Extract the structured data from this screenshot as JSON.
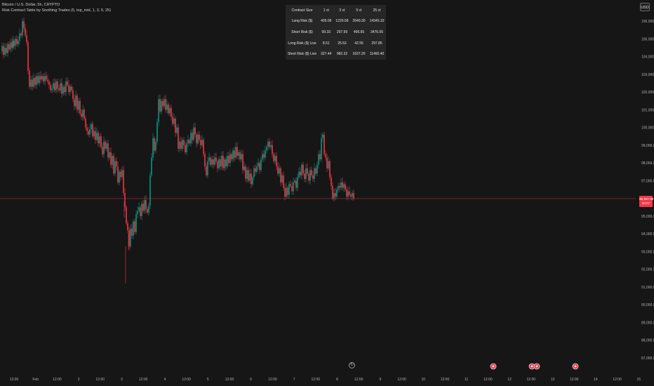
{
  "legend": {
    "line1": "Bitcoin / U.S. Dollar, 5h, CRYPTO",
    "line2": "Risk Contract Table by Soothing Trades (5, top_mid, 1, 3, 5, 25)"
  },
  "currency_button": "USD",
  "risk_table": {
    "headers": [
      "Contract Size",
      "1 ct",
      "3 ct",
      "5 ct",
      "25 ct"
    ],
    "rows": [
      [
        "Long Risk ($)",
        "409.06",
        "1229.58",
        "2049.30",
        "14345.10"
      ],
      [
        "Short Risk ($)",
        "99.33",
        "297.99",
        "496.65",
        "3476.55"
      ],
      [
        "Long Risk ($) Live",
        "8.51",
        "25.53",
        "42.55",
        "297.85"
      ],
      [
        "Short Risk ($) Live",
        "327.44",
        "982.32",
        "1637.20",
        "11460.40"
      ]
    ]
  },
  "price_badge": {
    "price": "95,987.89",
    "countdown": "20:07"
  },
  "colors": {
    "up": "#089981",
    "down": "#f23645",
    "background": "#161616",
    "price_line": "#f23645",
    "text": "#b2b2b2"
  },
  "chart_data": {
    "type": "candlestick",
    "symbol": "Bitcoin / U.S. Dollar",
    "interval": "5h",
    "current_price": 95987.89,
    "ylim": [
      86800,
      106400
    ],
    "y_ticks": [
      "106,000.00",
      "105,000.00",
      "104,000.00",
      "103,000.00",
      "102,000.00",
      "101,000.00",
      "100,000.00",
      "99,000.00",
      "98,000.00",
      "97,000.00",
      "95,000.00",
      "94,000.00",
      "93,000.00",
      "92,000.00",
      "91,000.00",
      "90,000.00",
      "89,000.00",
      "88,000.00",
      "87,000.00"
    ],
    "x_ticks": [
      "12:00",
      "Feb",
      "12:00",
      "2",
      "12:00",
      "3",
      "12:00",
      "4",
      "12:00",
      "5",
      "12:00",
      "6",
      "12:00",
      "7",
      "12:00",
      "8",
      "12:00",
      "9",
      "12:00",
      "10",
      "12:00",
      "11",
      "12:00",
      "12",
      "12:00",
      "13",
      "12:00",
      "14",
      "12:00",
      "15"
    ],
    "candle_path": [
      [
        0,
        104300
      ],
      [
        2,
        104600
      ],
      [
        4,
        104100
      ],
      [
        6,
        104500
      ],
      [
        8,
        104200
      ],
      [
        10,
        104700
      ],
      [
        12,
        104400
      ],
      [
        14,
        104800
      ],
      [
        16,
        104500
      ],
      [
        17,
        104900
      ],
      [
        19,
        104600
      ],
      [
        21,
        105000
      ],
      [
        23,
        104700
      ],
      [
        25,
        104900
      ],
      [
        27,
        105300
      ],
      [
        29,
        105200
      ],
      [
        31,
        106000
      ],
      [
        33,
        105600
      ],
      [
        35,
        105200
      ],
      [
        37,
        104800
      ],
      [
        39,
        103200
      ],
      [
        41,
        102300
      ],
      [
        43,
        102700
      ],
      [
        45,
        102300
      ],
      [
        47,
        102800
      ],
      [
        49,
        102400
      ],
      [
        51,
        102900
      ],
      [
        53,
        102500
      ],
      [
        55,
        102900
      ],
      [
        57,
        102700
      ],
      [
        59,
        102900
      ],
      [
        61,
        102600
      ],
      [
        63,
        102900
      ],
      [
        65,
        102700
      ],
      [
        67,
        102600
      ],
      [
        69,
        102400
      ],
      [
        71,
        102100
      ],
      [
        73,
        102200
      ],
      [
        75,
        102500
      ],
      [
        77,
        102100
      ],
      [
        79,
        102600
      ],
      [
        81,
        102200
      ],
      [
        83,
        102100
      ],
      [
        85,
        102500
      ],
      [
        87,
        101900
      ],
      [
        89,
        102300
      ],
      [
        91,
        102000
      ],
      [
        93,
        102600
      ],
      [
        95,
        102400
      ],
      [
        97,
        102000
      ],
      [
        99,
        102300
      ],
      [
        101,
        102100
      ],
      [
        103,
        101600
      ],
      [
        105,
        101200
      ],
      [
        107,
        101800
      ],
      [
        109,
        101000
      ],
      [
        111,
        101500
      ],
      [
        113,
        100800
      ],
      [
        115,
        100600
      ],
      [
        117,
        101000
      ],
      [
        119,
        100500
      ],
      [
        121,
        100000
      ],
      [
        123,
        99800
      ],
      [
        125,
        99600
      ],
      [
        127,
        99900
      ],
      [
        129,
        100200
      ],
      [
        131,
        99500
      ],
      [
        133,
        99800
      ],
      [
        135,
        99300
      ],
      [
        137,
        99700
      ],
      [
        139,
        99100
      ],
      [
        141,
        99500
      ],
      [
        143,
        98900
      ],
      [
        145,
        98500
      ],
      [
        147,
        99200
      ],
      [
        149,
        98800
      ],
      [
        151,
        99100
      ],
      [
        153,
        98300
      ],
      [
        155,
        98600
      ],
      [
        157,
        97900
      ],
      [
        159,
        98400
      ],
      [
        161,
        97400
      ],
      [
        163,
        98100
      ],
      [
        165,
        97800
      ],
      [
        167,
        96900
      ],
      [
        169,
        97500
      ],
      [
        171,
        97200
      ],
      [
        173,
        97600
      ],
      [
        175,
        96300
      ],
      [
        177,
        95500
      ],
      [
        179,
        94600
      ],
      [
        181,
        94200
      ],
      [
        183,
        93300
      ],
      [
        185,
        94300
      ],
      [
        187,
        93900
      ],
      [
        189,
        94700
      ],
      [
        191,
        94100
      ],
      [
        193,
        95100
      ],
      [
        195,
        95300
      ],
      [
        197,
        95500
      ],
      [
        199,
        95000
      ],
      [
        201,
        95700
      ],
      [
        203,
        95300
      ],
      [
        205,
        95900
      ],
      [
        207,
        95400
      ],
      [
        209,
        95200
      ],
      [
        211,
        95600
      ],
      [
        213,
        97300
      ],
      [
        215,
        98300
      ],
      [
        217,
        99400
      ],
      [
        219,
        98700
      ],
      [
        221,
        99200
      ],
      [
        223,
        100300
      ],
      [
        225,
        101600
      ],
      [
        227,
        100900
      ],
      [
        229,
        101500
      ],
      [
        231,
        101200
      ],
      [
        233,
        101600
      ],
      [
        235,
        101000
      ],
      [
        237,
        101300
      ],
      [
        239,
        100800
      ],
      [
        241,
        101100
      ],
      [
        243,
        100600
      ],
      [
        245,
        100200
      ],
      [
        247,
        100500
      ],
      [
        249,
        99700
      ],
      [
        251,
        100000
      ],
      [
        253,
        98800
      ],
      [
        255,
        99200
      ],
      [
        257,
        98800
      ],
      [
        259,
        99300
      ],
      [
        261,
        99000
      ],
      [
        263,
        98600
      ],
      [
        265,
        99100
      ],
      [
        267,
        99300
      ],
      [
        269,
        99100
      ],
      [
        271,
        99700
      ],
      [
        273,
        99300
      ],
      [
        275,
        100000
      ],
      [
        277,
        99600
      ],
      [
        279,
        99100
      ],
      [
        281,
        99600
      ],
      [
        283,
        99300
      ],
      [
        285,
        99000
      ],
      [
        287,
        99300
      ],
      [
        289,
        98500
      ],
      [
        291,
        97800
      ],
      [
        293,
        97300
      ],
      [
        295,
        98100
      ],
      [
        297,
        98300
      ],
      [
        299,
        97900
      ],
      [
        301,
        98200
      ],
      [
        303,
        97900
      ],
      [
        305,
        98300
      ],
      [
        307,
        98100
      ],
      [
        309,
        97700
      ],
      [
        311,
        98200
      ],
      [
        313,
        97800
      ],
      [
        315,
        98400
      ],
      [
        317,
        97700
      ],
      [
        319,
        98200
      ],
      [
        321,
        97800
      ],
      [
        323,
        98400
      ],
      [
        325,
        98000
      ],
      [
        327,
        98500
      ],
      [
        329,
        98200
      ],
      [
        331,
        98700
      ],
      [
        333,
        98300
      ],
      [
        335,
        98900
      ],
      [
        337,
        98400
      ],
      [
        339,
        98600
      ],
      [
        341,
        98200
      ],
      [
        343,
        98500
      ],
      [
        345,
        97600
      ],
      [
        347,
        97800
      ],
      [
        349,
        97100
      ],
      [
        351,
        97600
      ],
      [
        353,
        97000
      ],
      [
        355,
        97400
      ],
      [
        357,
        96800
      ],
      [
        359,
        97200
      ],
      [
        361,
        97700
      ],
      [
        363,
        97500
      ],
      [
        365,
        97800
      ],
      [
        367,
        98000
      ],
      [
        369,
        97600
      ],
      [
        371,
        98200
      ],
      [
        373,
        98500
      ],
      [
        375,
        98300
      ],
      [
        377,
        98700
      ],
      [
        379,
        98900
      ],
      [
        381,
        99200
      ],
      [
        383,
        98900
      ],
      [
        385,
        99000
      ],
      [
        387,
        98500
      ],
      [
        389,
        98100
      ],
      [
        391,
        98400
      ],
      [
        393,
        97800
      ],
      [
        395,
        97400
      ],
      [
        397,
        97700
      ],
      [
        399,
        96900
      ],
      [
        401,
        97300
      ],
      [
        403,
        96600
      ],
      [
        405,
        96100
      ],
      [
        407,
        96600
      ],
      [
        409,
        96200
      ],
      [
        411,
        96800
      ],
      [
        413,
        96700
      ],
      [
        415,
        96400
      ],
      [
        417,
        96900
      ],
      [
        419,
        97000
      ],
      [
        421,
        96600
      ],
      [
        423,
        97200
      ],
      [
        425,
        97500
      ],
      [
        427,
        97300
      ],
      [
        429,
        97900
      ],
      [
        431,
        97400
      ],
      [
        433,
        97100
      ],
      [
        435,
        97700
      ],
      [
        437,
        97400
      ],
      [
        439,
        97000
      ],
      [
        441,
        97600
      ],
      [
        443,
        97300
      ],
      [
        445,
        97100
      ],
      [
        447,
        97700
      ],
      [
        449,
        97400
      ],
      [
        451,
        97900
      ],
      [
        453,
        98500
      ],
      [
        455,
        98200
      ],
      [
        457,
        99400
      ],
      [
        459,
        99600
      ],
      [
        461,
        98500
      ],
      [
        463,
        98300
      ],
      [
        465,
        97700
      ],
      [
        467,
        98100
      ],
      [
        469,
        97200
      ],
      [
        471,
        96700
      ],
      [
        473,
        96000
      ],
      [
        475,
        96300
      ],
      [
        477,
        96100
      ],
      [
        479,
        96500
      ],
      [
        481,
        96700
      ],
      [
        483,
        96600
      ],
      [
        485,
        96900
      ],
      [
        487,
        96600
      ],
      [
        489,
        96800
      ],
      [
        491,
        96500
      ],
      [
        493,
        96100
      ],
      [
        495,
        96400
      ],
      [
        497,
        96200
      ],
      [
        499,
        96100
      ],
      [
        501,
        96300
      ],
      [
        503,
        95990
      ]
    ],
    "grid": false,
    "event_markers": [
      "dot",
      "dot",
      "dot",
      "dot"
    ]
  }
}
